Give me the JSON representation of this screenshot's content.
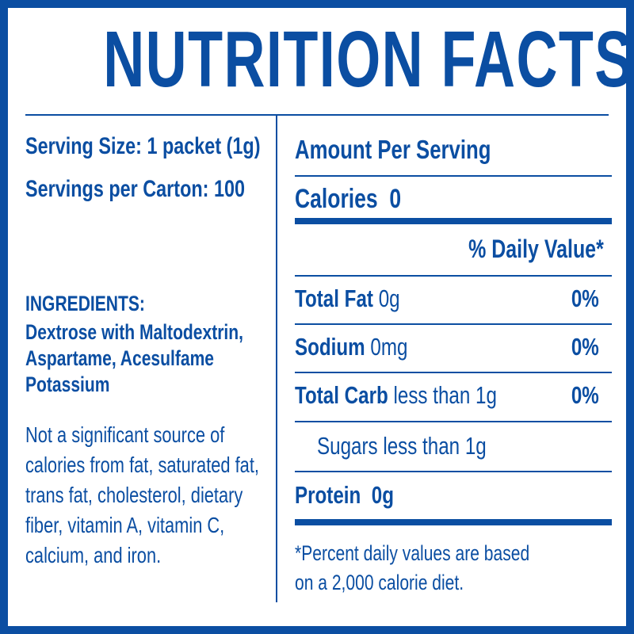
{
  "title": "NUTRITION FACTS",
  "left": {
    "serving_size": "Serving Size: 1 packet (1g)",
    "servings_per_carton": "Servings per Carton: 100",
    "ingredients_heading": "INGREDIENTS:",
    "ingredients_lines": [
      "Dextrose with Maltodextrin,",
      "Aspartame, Acesulfame",
      "Potassium"
    ],
    "note_lines": [
      "Not a significant source of",
      "calories from fat, saturated fat,",
      "trans fat, cholesterol, dietary",
      "fiber, vitamin A, vitamin C,",
      "calcium, and iron."
    ]
  },
  "right": {
    "amount_per_serving": "Amount Per Serving",
    "calories_label": "Calories",
    "calories_value": "0",
    "daily_value_header": "% Daily Value*",
    "rows": [
      {
        "label": "Total Fat",
        "amount": "0g",
        "dv": "0%"
      },
      {
        "label": "Sodium",
        "amount": "0mg",
        "dv": "0%"
      },
      {
        "label": "Total Carb",
        "amount": "less than 1g",
        "dv": "0%"
      }
    ],
    "sugars": "Sugars less than 1g",
    "protein_label": "Protein",
    "protein_value": "0g",
    "footnote_lines": [
      "*Percent daily values are based",
      "on a 2,000 calorie diet."
    ]
  },
  "colors": {
    "brand": "#0b4ea2",
    "background": "#ffffff"
  }
}
